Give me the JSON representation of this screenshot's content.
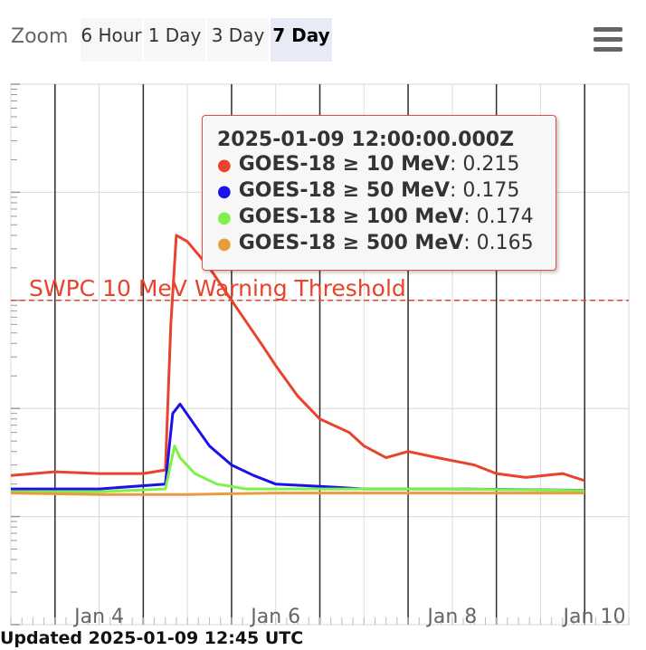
{
  "zoom": {
    "label": "Zoom",
    "buttons": [
      {
        "label": "6 Hour",
        "active": false
      },
      {
        "label": "1 Day",
        "active": false
      },
      {
        "label": "3 Day",
        "active": false
      },
      {
        "label": "7 Day",
        "active": true
      }
    ]
  },
  "menu": {
    "icon": "hamburger-menu-icon"
  },
  "updated": "Updated 2025-01-09 12:45 UTC",
  "tooltip": {
    "title": "2025-01-09 12:00:00.000Z",
    "rows": [
      {
        "name": "GOES-18 ≥ 10 MeV",
        "value": ": 0.215",
        "color": "#e8432c"
      },
      {
        "name": "GOES-18 ≥ 50 MeV",
        "value": ": 0.175",
        "color": "#1a12e8"
      },
      {
        "name": "GOES-18 ≥ 100 MeV",
        "value": ": 0.174",
        "color": "#7ef04a"
      },
      {
        "name": "GOES-18 ≥ 500 MeV",
        "value": ": 0.165",
        "color": "#e89c3e"
      }
    ]
  },
  "chart_data": {
    "type": "line",
    "yscale": "log",
    "ylim": [
      0.01,
      1000
    ],
    "xlim": [
      "2025-01-03 00:00",
      "2025-01-10 00:00"
    ],
    "x_ticks": [
      "Jan 4",
      "Jan 6",
      "Jan 8",
      "Jan 10"
    ],
    "x_tick_dates": [
      "2025-01-04",
      "2025-01-06",
      "2025-01-08",
      "2025-01-10"
    ],
    "grid": true,
    "threshold": {
      "label": "SWPC 10 MeV Warning Threshold",
      "value": 10,
      "color": "#e8432c"
    },
    "series": [
      {
        "name": "GOES-18 ≥ 10 MeV",
        "color": "#e8432c",
        "x": [
          "2025-01-03 00:00",
          "2025-01-03 12:00",
          "2025-01-04 00:00",
          "2025-01-04 12:00",
          "2025-01-04 18:00",
          "2025-01-04 19:30",
          "2025-01-04 21:00",
          "2025-01-05 00:00",
          "2025-01-05 06:00",
          "2025-01-05 12:00",
          "2025-01-05 20:00",
          "2025-01-06 00:00",
          "2025-01-06 06:00",
          "2025-01-06 12:00",
          "2025-01-06 20:00",
          "2025-01-07 00:00",
          "2025-01-07 06:00",
          "2025-01-07 12:00",
          "2025-01-07 20:00",
          "2025-01-08 06:00",
          "2025-01-08 12:00",
          "2025-01-08 20:00",
          "2025-01-09 06:00",
          "2025-01-09 12:00"
        ],
        "values": [
          0.24,
          0.26,
          0.25,
          0.25,
          0.27,
          6.0,
          40,
          35,
          20,
          10,
          4.0,
          2.5,
          1.3,
          0.8,
          0.6,
          0.45,
          0.35,
          0.4,
          0.35,
          0.3,
          0.25,
          0.23,
          0.25,
          0.215
        ]
      },
      {
        "name": "GOES-18 ≥ 50 MeV",
        "color": "#1a12e8",
        "x": [
          "2025-01-03 00:00",
          "2025-01-04 00:00",
          "2025-01-04 18:00",
          "2025-01-04 20:00",
          "2025-01-04 22:00",
          "2025-01-05 02:00",
          "2025-01-05 06:00",
          "2025-01-05 12:00",
          "2025-01-05 18:00",
          "2025-01-06 00:00",
          "2025-01-06 12:00",
          "2025-01-07 00:00",
          "2025-01-08 00:00",
          "2025-01-09 12:00"
        ],
        "values": [
          0.18,
          0.18,
          0.2,
          0.9,
          1.1,
          0.7,
          0.45,
          0.3,
          0.24,
          0.2,
          0.19,
          0.18,
          0.18,
          0.175
        ]
      },
      {
        "name": "GOES-18 ≥ 100 MeV",
        "color": "#7ef04a",
        "x": [
          "2025-01-03 00:00",
          "2025-01-04 00:00",
          "2025-01-04 18:00",
          "2025-01-04 20:30",
          "2025-01-04 22:00",
          "2025-01-05 02:00",
          "2025-01-05 08:00",
          "2025-01-05 16:00",
          "2025-01-06 00:00",
          "2025-01-07 00:00",
          "2025-01-08 00:00",
          "2025-01-09 12:00"
        ],
        "values": [
          0.17,
          0.17,
          0.18,
          0.45,
          0.35,
          0.25,
          0.2,
          0.18,
          0.18,
          0.18,
          0.18,
          0.174
        ]
      },
      {
        "name": "GOES-18 ≥ 500 MeV",
        "color": "#e89c3e",
        "x": [
          "2025-01-03 00:00",
          "2025-01-04 00:00",
          "2025-01-05 00:00",
          "2025-01-06 00:00",
          "2025-01-07 00:00",
          "2025-01-08 00:00",
          "2025-01-09 00:00",
          "2025-01-09 12:00"
        ],
        "values": [
          0.165,
          0.16,
          0.16,
          0.165,
          0.165,
          0.165,
          0.165,
          0.165
        ]
      }
    ]
  }
}
